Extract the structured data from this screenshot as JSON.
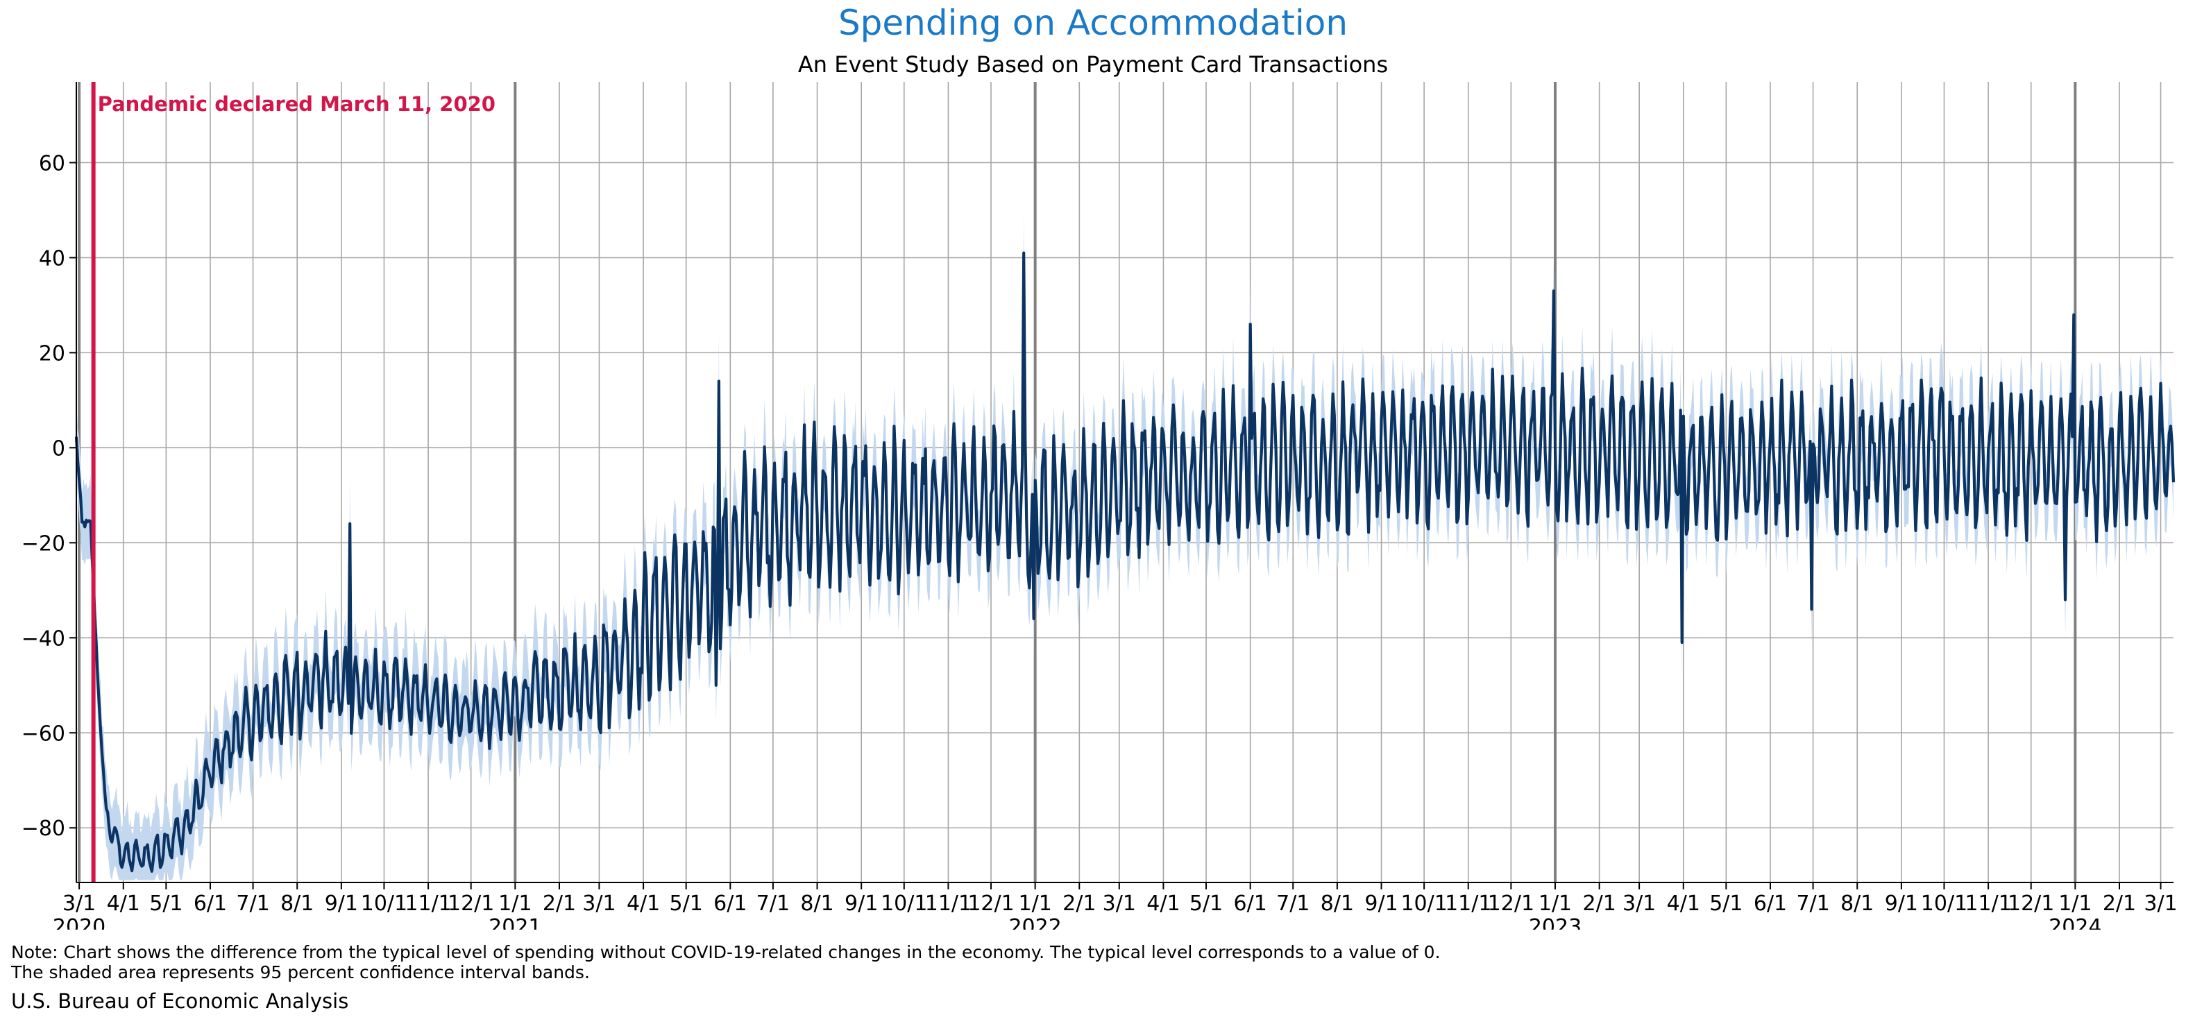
{
  "title": "Spending on Accommodation",
  "subtitle": "An Event Study Based on Payment Card Transactions",
  "note_line1": "Note: Chart shows the difference from the typical level of spending without COVID-19-related changes in the economy. The typical level corresponds to a value of 0.",
  "note_line2": "The shaded area represents 95 percent confidence interval bands.",
  "source": "U.S. Bureau of Economic Analysis",
  "colors": {
    "title": "#1a7ac8",
    "line": "#0b3463",
    "band": "#c3d8ef",
    "event": "#d3154a",
    "grid": "#a6a6a6",
    "year_line": "#808080"
  },
  "chart_data": {
    "type": "line",
    "title": "Spending on Accommodation",
    "subtitle": "An Event Study Based on Payment Card Transactions",
    "xlabel": "",
    "ylabel": "",
    "x_range": [
      "2020-02-28",
      "2024-03-10"
    ],
    "ylim": [
      -91.5,
      77
    ],
    "yticks": [
      -80,
      -60,
      -40,
      -20,
      0,
      20,
      40,
      60
    ],
    "grid": true,
    "legend": "none",
    "event": {
      "date": "2020-03-11",
      "label": "Pandemic declared March 11, 2020"
    },
    "month_ticks": [
      {
        "date": "2020-03-01",
        "label": "3/1",
        "year": "2020"
      },
      {
        "date": "2020-04-01",
        "label": "4/1",
        "year": ""
      },
      {
        "date": "2020-05-01",
        "label": "5/1",
        "year": ""
      },
      {
        "date": "2020-06-01",
        "label": "6/1",
        "year": ""
      },
      {
        "date": "2020-07-01",
        "label": "7/1",
        "year": ""
      },
      {
        "date": "2020-08-01",
        "label": "8/1",
        "year": ""
      },
      {
        "date": "2020-09-01",
        "label": "9/1",
        "year": ""
      },
      {
        "date": "2020-10-01",
        "label": "10/1",
        "year": ""
      },
      {
        "date": "2020-11-01",
        "label": "11/1",
        "year": ""
      },
      {
        "date": "2020-12-01",
        "label": "12/1",
        "year": ""
      },
      {
        "date": "2021-01-01",
        "label": "1/1",
        "year": "2021"
      },
      {
        "date": "2021-02-01",
        "label": "2/1",
        "year": ""
      },
      {
        "date": "2021-03-01",
        "label": "3/1",
        "year": ""
      },
      {
        "date": "2021-04-01",
        "label": "4/1",
        "year": ""
      },
      {
        "date": "2021-05-01",
        "label": "5/1",
        "year": ""
      },
      {
        "date": "2021-06-01",
        "label": "6/1",
        "year": ""
      },
      {
        "date": "2021-07-01",
        "label": "7/1",
        "year": ""
      },
      {
        "date": "2021-08-01",
        "label": "8/1",
        "year": ""
      },
      {
        "date": "2021-09-01",
        "label": "9/1",
        "year": ""
      },
      {
        "date": "2021-10-01",
        "label": "10/1",
        "year": ""
      },
      {
        "date": "2021-11-01",
        "label": "11/1",
        "year": ""
      },
      {
        "date": "2021-12-01",
        "label": "12/1",
        "year": ""
      },
      {
        "date": "2022-01-01",
        "label": "1/1",
        "year": "2022"
      },
      {
        "date": "2022-02-01",
        "label": "2/1",
        "year": ""
      },
      {
        "date": "2022-03-01",
        "label": "3/1",
        "year": ""
      },
      {
        "date": "2022-04-01",
        "label": "4/1",
        "year": ""
      },
      {
        "date": "2022-05-01",
        "label": "5/1",
        "year": ""
      },
      {
        "date": "2022-06-01",
        "label": "6/1",
        "year": ""
      },
      {
        "date": "2022-07-01",
        "label": "7/1",
        "year": ""
      },
      {
        "date": "2022-08-01",
        "label": "8/1",
        "year": ""
      },
      {
        "date": "2022-09-01",
        "label": "9/1",
        "year": ""
      },
      {
        "date": "2022-10-01",
        "label": "10/1",
        "year": ""
      },
      {
        "date": "2022-11-01",
        "label": "11/1",
        "year": ""
      },
      {
        "date": "2022-12-01",
        "label": "12/1",
        "year": ""
      },
      {
        "date": "2023-01-01",
        "label": "1/1",
        "year": "2023"
      },
      {
        "date": "2023-02-01",
        "label": "2/1",
        "year": ""
      },
      {
        "date": "2023-03-01",
        "label": "3/1",
        "year": ""
      },
      {
        "date": "2023-04-01",
        "label": "4/1",
        "year": ""
      },
      {
        "date": "2023-05-01",
        "label": "5/1",
        "year": ""
      },
      {
        "date": "2023-06-01",
        "label": "6/1",
        "year": ""
      },
      {
        "date": "2023-07-01",
        "label": "7/1",
        "year": ""
      },
      {
        "date": "2023-08-01",
        "label": "8/1",
        "year": ""
      },
      {
        "date": "2023-09-01",
        "label": "9/1",
        "year": ""
      },
      {
        "date": "2023-10-01",
        "label": "10/1",
        "year": ""
      },
      {
        "date": "2023-11-01",
        "label": "11/1",
        "year": ""
      },
      {
        "date": "2023-12-01",
        "label": "12/1",
        "year": ""
      },
      {
        "date": "2024-01-01",
        "label": "1/1",
        "year": "2024"
      },
      {
        "date": "2024-02-01",
        "label": "2/1",
        "year": ""
      },
      {
        "date": "2024-03-01",
        "label": "3/1",
        "year": ""
      }
    ],
    "weekly_amplitude": [
      {
        "date": "2020-03-15",
        "amp": 2
      },
      {
        "date": "2020-06-01",
        "amp": 4
      },
      {
        "date": "2020-08-01",
        "amp": 8
      },
      {
        "date": "2020-12-01",
        "amp": 5
      },
      {
        "date": "2021-04-01",
        "amp": 12
      },
      {
        "date": "2021-07-01",
        "amp": 14
      },
      {
        "date": "2022-01-01",
        "amp": 13
      },
      {
        "date": "2022-06-01",
        "amp": 12
      },
      {
        "date": "2024-03-10",
        "amp": 12
      }
    ],
    "band_width": 8,
    "series": [
      {
        "name": "",
        "trend": [
          {
            "date": "2020-02-28",
            "value": 2
          },
          {
            "date": "2020-03-03",
            "value": -16
          },
          {
            "date": "2020-03-09",
            "value": -16
          },
          {
            "date": "2020-03-14",
            "value": -48
          },
          {
            "date": "2020-03-20",
            "value": -78
          },
          {
            "date": "2020-04-01",
            "value": -86
          },
          {
            "date": "2020-04-20",
            "value": -86
          },
          {
            "date": "2020-05-15",
            "value": -80
          },
          {
            "date": "2020-06-01",
            "value": -68
          },
          {
            "date": "2020-06-20",
            "value": -60
          },
          {
            "date": "2020-07-15",
            "value": -54
          },
          {
            "date": "2020-08-15",
            "value": -49
          },
          {
            "date": "2020-09-15",
            "value": -51
          },
          {
            "date": "2020-10-15",
            "value": -52
          },
          {
            "date": "2020-11-15",
            "value": -55
          },
          {
            "date": "2020-12-15",
            "value": -56
          },
          {
            "date": "2021-01-15",
            "value": -52
          },
          {
            "date": "2021-02-15",
            "value": -50
          },
          {
            "date": "2021-03-15",
            "value": -44
          },
          {
            "date": "2021-04-15",
            "value": -35
          },
          {
            "date": "2021-05-15",
            "value": -30
          },
          {
            "date": "2021-06-15",
            "value": -18
          },
          {
            "date": "2021-07-15",
            "value": -14
          },
          {
            "date": "2021-08-15",
            "value": -13
          },
          {
            "date": "2021-09-15",
            "value": -14
          },
          {
            "date": "2021-10-15",
            "value": -15
          },
          {
            "date": "2021-11-15",
            "value": -12
          },
          {
            "date": "2021-12-15",
            "value": -10
          },
          {
            "date": "2022-01-15",
            "value": -16
          },
          {
            "date": "2022-02-15",
            "value": -10
          },
          {
            "date": "2022-03-15",
            "value": -6
          },
          {
            "date": "2022-05-15",
            "value": -4
          },
          {
            "date": "2022-08-15",
            "value": -2
          },
          {
            "date": "2022-11-15",
            "value": 0
          },
          {
            "date": "2023-01-15",
            "value": 0
          },
          {
            "date": "2023-04-15",
            "value": -4
          },
          {
            "date": "2023-07-15",
            "value": -2
          },
          {
            "date": "2023-10-15",
            "value": -2
          },
          {
            "date": "2024-01-15",
            "value": -4
          },
          {
            "date": "2024-03-10",
            "value": -2
          }
        ],
        "spikes": [
          {
            "date": "2020-09-07",
            "value": -16
          },
          {
            "date": "2021-05-24",
            "value": 14
          },
          {
            "date": "2021-05-22",
            "value": -50
          },
          {
            "date": "2021-12-24",
            "value": 41
          },
          {
            "date": "2021-12-31",
            "value": -36
          },
          {
            "date": "2022-06-01",
            "value": 26
          },
          {
            "date": "2022-12-31",
            "value": 33
          },
          {
            "date": "2023-03-31",
            "value": -41
          },
          {
            "date": "2023-06-30",
            "value": -34
          },
          {
            "date": "2023-12-31",
            "value": 28
          },
          {
            "date": "2023-12-25",
            "value": -32
          }
        ]
      }
    ]
  }
}
